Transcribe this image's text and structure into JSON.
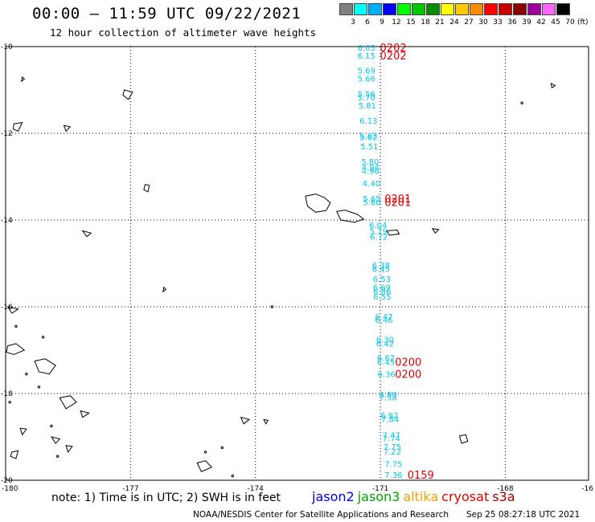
{
  "header": {
    "title": "00:00 – 11:59 UTC 09/22/2021",
    "subtitle": "12 hour collection of altimeter wave heights"
  },
  "colorbar": {
    "unit": "(ft)",
    "entries": [
      {
        "label": "3",
        "color": "#808080"
      },
      {
        "label": "6",
        "color": "#00ffff"
      },
      {
        "label": "9",
        "color": "#00b0ff"
      },
      {
        "label": "12",
        "color": "#0000ff"
      },
      {
        "label": "15",
        "color": "#00ff00"
      },
      {
        "label": "18",
        "color": "#00c800"
      },
      {
        "label": "21",
        "color": "#008c00"
      },
      {
        "label": "24",
        "color": "#ffff00"
      },
      {
        "label": "27",
        "color": "#ffc800"
      },
      {
        "label": "30",
        "color": "#ff8c00"
      },
      {
        "label": "33",
        "color": "#ff0000"
      },
      {
        "label": "36",
        "color": "#c80000"
      },
      {
        "label": "39",
        "color": "#8c0000"
      },
      {
        "label": "42",
        "color": "#a000a0"
      },
      {
        "label": "45",
        "color": "#ff64ff"
      },
      {
        "label": "70",
        "color": "#000000"
      }
    ]
  },
  "map": {
    "lon_range": [
      -180,
      -166
    ],
    "lat_range": [
      -20,
      -10
    ],
    "lat_labels": [
      "-10",
      "-12",
      "-14",
      "-16",
      "-18",
      "-20"
    ],
    "lon_labels": [
      "-180",
      "-177",
      "-174",
      "-171",
      "-168",
      "-16"
    ],
    "value_color": "#00c8e8",
    "time_color": "#e00000",
    "swh_values": [
      {
        "text": "6.05",
        "lon": -171.55,
        "lat": -10.02
      },
      {
        "text": "6.15",
        "lon": -171.55,
        "lat": -10.2
      },
      {
        "text": "5.69",
        "lon": -171.55,
        "lat": -10.55
      },
      {
        "text": "5.66",
        "lon": -171.55,
        "lat": -10.73
      },
      {
        "text": "5.56",
        "lon": -171.55,
        "lat": -11.08
      },
      {
        "text": "5.70",
        "lon": -171.55,
        "lat": -11.17
      },
      {
        "text": "5.81",
        "lon": -171.53,
        "lat": -11.35
      },
      {
        "text": "6.13",
        "lon": -171.5,
        "lat": -11.7
      },
      {
        "text": "5.63",
        "lon": -171.5,
        "lat": -12.05
      },
      {
        "text": "5.62",
        "lon": -171.5,
        "lat": -12.08
      },
      {
        "text": "5.51",
        "lon": -171.48,
        "lat": -12.3
      },
      {
        "text": "5.80",
        "lon": -171.46,
        "lat": -12.65
      },
      {
        "text": "4.94",
        "lon": -171.45,
        "lat": -12.78
      },
      {
        "text": "4.96",
        "lon": -171.45,
        "lat": -12.86
      },
      {
        "text": "4.40",
        "lon": -171.43,
        "lat": -13.15
      },
      {
        "text": "5.65",
        "lon": -171.42,
        "lat": -13.5
      },
      {
        "text": "5.60",
        "lon": -171.42,
        "lat": -13.58
      },
      {
        "text": "6.04",
        "lon": -171.27,
        "lat": -14.11
      },
      {
        "text": "5.79",
        "lon": -171.26,
        "lat": -14.25
      },
      {
        "text": "6.72",
        "lon": -171.25,
        "lat": -14.38
      },
      {
        "text": "6.38",
        "lon": -171.2,
        "lat": -15.04
      },
      {
        "text": "6.45",
        "lon": -171.2,
        "lat": -15.12
      },
      {
        "text": "6.53",
        "lon": -171.18,
        "lat": -15.35
      },
      {
        "text": "6.69",
        "lon": -171.18,
        "lat": -15.55
      },
      {
        "text": "6.86",
        "lon": -171.17,
        "lat": -15.64
      },
      {
        "text": "6.55",
        "lon": -171.17,
        "lat": -15.76
      },
      {
        "text": "6.47",
        "lon": -171.13,
        "lat": -16.22
      },
      {
        "text": "6.46",
        "lon": -171.13,
        "lat": -16.3
      },
      {
        "text": "6.30",
        "lon": -171.1,
        "lat": -16.75
      },
      {
        "text": "6.42",
        "lon": -171.1,
        "lat": -16.84
      },
      {
        "text": "6.62",
        "lon": -171.08,
        "lat": -17.17
      },
      {
        "text": "6.45",
        "lon": -171.08,
        "lat": -17.27
      },
      {
        "text": "6.36",
        "lon": -171.07,
        "lat": -17.55
      },
      {
        "text": "6.89",
        "lon": -171.03,
        "lat": -18.02
      },
      {
        "text": "7.38",
        "lon": -171.03,
        "lat": -18.08
      },
      {
        "text": "6.92",
        "lon": -171.0,
        "lat": -18.5
      },
      {
        "text": "7.84",
        "lon": -170.98,
        "lat": -18.58
      },
      {
        "text": "7.47",
        "lon": -170.95,
        "lat": -18.95
      },
      {
        "text": "7.74",
        "lon": -170.95,
        "lat": -19.03
      },
      {
        "text": "7.75",
        "lon": -170.93,
        "lat": -19.22
      },
      {
        "text": "7.22",
        "lon": -170.93,
        "lat": -19.33
      },
      {
        "text": "7.75",
        "lon": -170.9,
        "lat": -19.62
      },
      {
        "text": "7.36",
        "lon": -170.9,
        "lat": -19.87
      }
    ],
    "time_labels": [
      {
        "text": "0202",
        "lon": -171.01,
        "lat": -10.02
      },
      {
        "text": "0202",
        "lon": -171.01,
        "lat": -10.2
      },
      {
        "text": "0201",
        "lon": -170.9,
        "lat": -13.5
      },
      {
        "text": "0201",
        "lon": -170.9,
        "lat": -13.58
      },
      {
        "text": "0200",
        "lon": -170.65,
        "lat": -17.27
      },
      {
        "text": "0200",
        "lon": -170.65,
        "lat": -17.55
      },
      {
        "text": "0159",
        "lon": -170.35,
        "lat": -19.87
      }
    ]
  },
  "footer": {
    "note": "note: 1) Time is in UTC; 2) SWH is in feet",
    "missions": [
      {
        "name": "jason2",
        "color": "#0000e0"
      },
      {
        "name": "jason3",
        "color": "#00a000"
      },
      {
        "name": "altika",
        "color": "#f0a000"
      },
      {
        "name": "cryosat",
        "color": "#e00000"
      },
      {
        "name": "s3a",
        "color": "#a00000"
      }
    ],
    "credit": "NOAA/NESDIS Center for Satellite Applications and Research",
    "timestamp": "Sep 25 08:27:18 UTC 2021"
  }
}
